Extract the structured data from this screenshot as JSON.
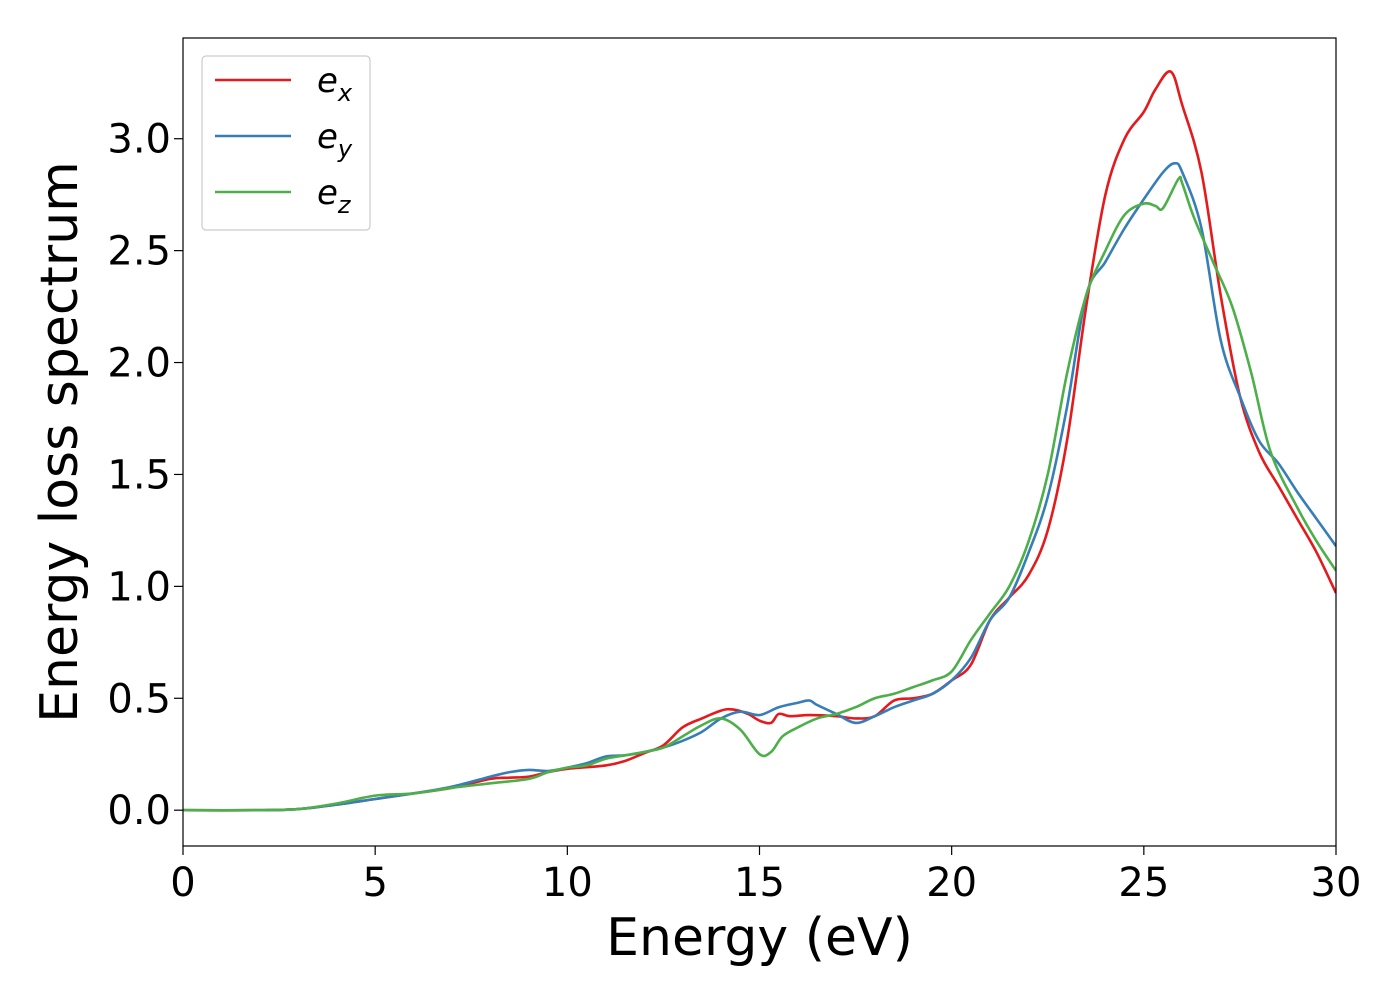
{
  "chart_data": {
    "type": "line",
    "xlabel": "Energy (eV)",
    "ylabel": "Energy loss spectrum",
    "xlim": [
      0,
      30
    ],
    "ylim": [
      -0.16,
      3.45
    ],
    "xticks": [
      0,
      5,
      10,
      15,
      20,
      25,
      30
    ],
    "yticks": [
      0.0,
      0.5,
      1.0,
      1.5,
      2.0,
      2.5,
      3.0
    ],
    "xtick_labels": [
      "0",
      "5",
      "10",
      "15",
      "20",
      "25",
      "30"
    ],
    "ytick_labels": [
      "0.0",
      "0.5",
      "1.0",
      "1.5",
      "2.0",
      "2.5",
      "3.0"
    ],
    "grid": false,
    "legend_position": "top-left",
    "series": [
      {
        "name": "e_x",
        "legend_base": "e",
        "legend_sub": "x",
        "color": "#e41a1c",
        "points": [
          [
            0,
            0
          ],
          [
            2,
            0
          ],
          [
            3,
            0.005
          ],
          [
            4,
            0.025
          ],
          [
            5,
            0.05
          ],
          [
            6,
            0.075
          ],
          [
            7,
            0.1
          ],
          [
            8,
            0.14
          ],
          [
            8.5,
            0.145
          ],
          [
            9,
            0.15
          ],
          [
            9.5,
            0.17
          ],
          [
            10,
            0.185
          ],
          [
            11,
            0.2
          ],
          [
            11.5,
            0.22
          ],
          [
            12,
            0.255
          ],
          [
            12.5,
            0.29
          ],
          [
            13,
            0.37
          ],
          [
            13.5,
            0.41
          ],
          [
            14,
            0.445
          ],
          [
            14.3,
            0.45
          ],
          [
            14.7,
            0.43
          ],
          [
            15,
            0.4
          ],
          [
            15.3,
            0.39
          ],
          [
            15.5,
            0.43
          ],
          [
            15.8,
            0.42
          ],
          [
            16.3,
            0.425
          ],
          [
            17,
            0.42
          ],
          [
            17.5,
            0.41
          ],
          [
            18,
            0.42
          ],
          [
            18.5,
            0.49
          ],
          [
            19,
            0.5
          ],
          [
            19.5,
            0.52
          ],
          [
            20,
            0.58
          ],
          [
            20.5,
            0.65
          ],
          [
            21,
            0.85
          ],
          [
            21.5,
            0.95
          ],
          [
            22,
            1.05
          ],
          [
            22.5,
            1.25
          ],
          [
            23,
            1.65
          ],
          [
            23.5,
            2.25
          ],
          [
            24,
            2.75
          ],
          [
            24.5,
            3.0
          ],
          [
            25,
            3.12
          ],
          [
            25.3,
            3.22
          ],
          [
            25.7,
            3.3
          ],
          [
            26,
            3.15
          ],
          [
            26.5,
            2.85
          ],
          [
            27,
            2.3
          ],
          [
            27.5,
            1.85
          ],
          [
            28,
            1.6
          ],
          [
            28.5,
            1.45
          ],
          [
            29,
            1.3
          ],
          [
            29.5,
            1.15
          ],
          [
            30,
            0.97
          ]
        ]
      },
      {
        "name": "e_y",
        "legend_base": "e",
        "legend_sub": "y",
        "color": "#377eb8",
        "points": [
          [
            0,
            0
          ],
          [
            2,
            0
          ],
          [
            3,
            0.005
          ],
          [
            4,
            0.025
          ],
          [
            5,
            0.05
          ],
          [
            6,
            0.075
          ],
          [
            7,
            0.105
          ],
          [
            8,
            0.15
          ],
          [
            8.5,
            0.17
          ],
          [
            9,
            0.18
          ],
          [
            9.5,
            0.175
          ],
          [
            10,
            0.19
          ],
          [
            10.5,
            0.21
          ],
          [
            11,
            0.24
          ],
          [
            11.5,
            0.245
          ],
          [
            12,
            0.26
          ],
          [
            12.5,
            0.28
          ],
          [
            13,
            0.31
          ],
          [
            13.5,
            0.35
          ],
          [
            14,
            0.41
          ],
          [
            14.5,
            0.44
          ],
          [
            15,
            0.425
          ],
          [
            15.5,
            0.46
          ],
          [
            16,
            0.48
          ],
          [
            16.3,
            0.49
          ],
          [
            16.5,
            0.47
          ],
          [
            17,
            0.43
          ],
          [
            17.5,
            0.39
          ],
          [
            18,
            0.42
          ],
          [
            18.5,
            0.46
          ],
          [
            19,
            0.49
          ],
          [
            19.5,
            0.52
          ],
          [
            20,
            0.58
          ],
          [
            20.5,
            0.68
          ],
          [
            21,
            0.85
          ],
          [
            21.5,
            0.95
          ],
          [
            22,
            1.15
          ],
          [
            22.5,
            1.4
          ],
          [
            23,
            1.8
          ],
          [
            23.5,
            2.3
          ],
          [
            24,
            2.45
          ],
          [
            24.5,
            2.6
          ],
          [
            25,
            2.73
          ],
          [
            25.5,
            2.85
          ],
          [
            25.8,
            2.89
          ],
          [
            26,
            2.85
          ],
          [
            26.5,
            2.6
          ],
          [
            27,
            2.1
          ],
          [
            27.5,
            1.85
          ],
          [
            28,
            1.65
          ],
          [
            28.5,
            1.55
          ],
          [
            29,
            1.42
          ],
          [
            29.5,
            1.3
          ],
          [
            30,
            1.18
          ]
        ]
      },
      {
        "name": "e_z",
        "legend_base": "e",
        "legend_sub": "z",
        "color": "#4daf4a",
        "points": [
          [
            0,
            0
          ],
          [
            2,
            0
          ],
          [
            3,
            0.005
          ],
          [
            4,
            0.03
          ],
          [
            5,
            0.065
          ],
          [
            6,
            0.075
          ],
          [
            7,
            0.1
          ],
          [
            8,
            0.12
          ],
          [
            9,
            0.14
          ],
          [
            9.5,
            0.17
          ],
          [
            10,
            0.19
          ],
          [
            10.5,
            0.2
          ],
          [
            11,
            0.23
          ],
          [
            11.5,
            0.245
          ],
          [
            12,
            0.26
          ],
          [
            12.5,
            0.28
          ],
          [
            13,
            0.33
          ],
          [
            13.5,
            0.38
          ],
          [
            14,
            0.41
          ],
          [
            14.5,
            0.36
          ],
          [
            15,
            0.25
          ],
          [
            15.3,
            0.26
          ],
          [
            15.6,
            0.33
          ],
          [
            16,
            0.37
          ],
          [
            16.5,
            0.41
          ],
          [
            17,
            0.43
          ],
          [
            17.5,
            0.46
          ],
          [
            18,
            0.5
          ],
          [
            18.5,
            0.52
          ],
          [
            19,
            0.55
          ],
          [
            19.5,
            0.58
          ],
          [
            20,
            0.62
          ],
          [
            20.5,
            0.76
          ],
          [
            21,
            0.88
          ],
          [
            21.5,
            1.0
          ],
          [
            22,
            1.2
          ],
          [
            22.5,
            1.5
          ],
          [
            23,
            1.95
          ],
          [
            23.5,
            2.3
          ],
          [
            24,
            2.5
          ],
          [
            24.5,
            2.66
          ],
          [
            25,
            2.71
          ],
          [
            25.3,
            2.7
          ],
          [
            25.5,
            2.69
          ],
          [
            25.9,
            2.82
          ],
          [
            26,
            2.8
          ],
          [
            26.3,
            2.65
          ],
          [
            26.8,
            2.45
          ],
          [
            27.3,
            2.25
          ],
          [
            27.8,
            1.95
          ],
          [
            28.3,
            1.6
          ],
          [
            29,
            1.35
          ],
          [
            29.5,
            1.2
          ],
          [
            30,
            1.07
          ]
        ]
      }
    ]
  }
}
